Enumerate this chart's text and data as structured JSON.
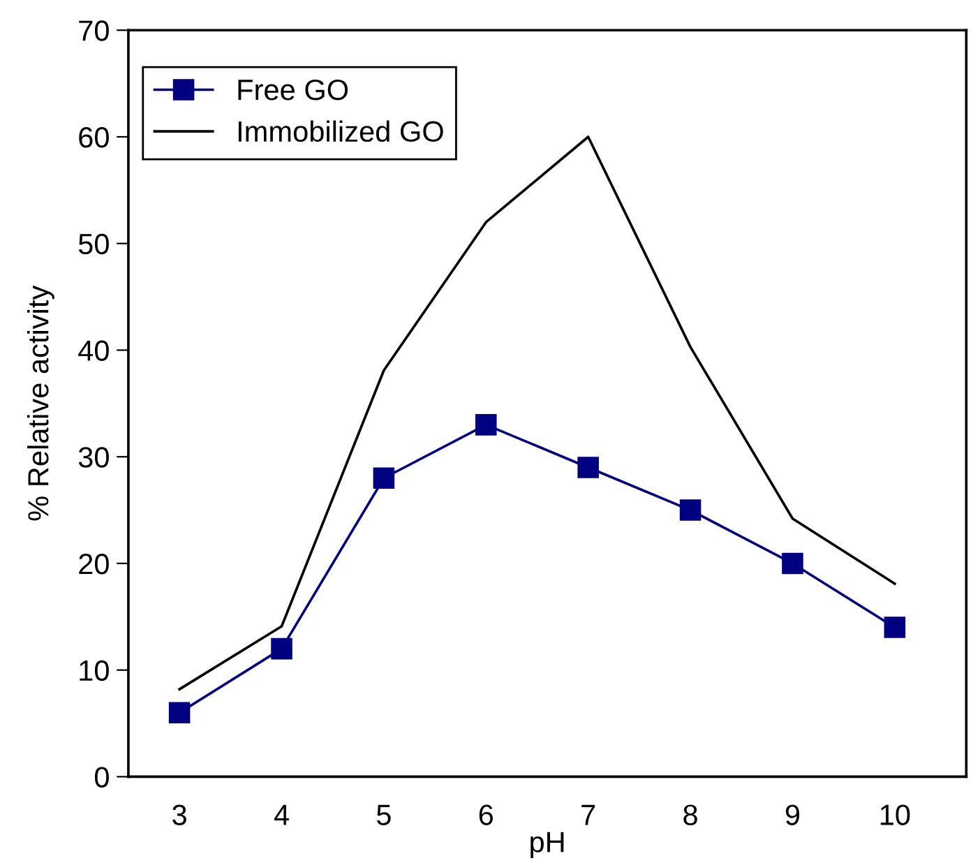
{
  "chart_data": {
    "type": "line",
    "xlabel": "pH",
    "ylabel": "% Relative activity",
    "categories": [
      "3",
      "4",
      "5",
      "6",
      "7",
      "8",
      "9",
      "10"
    ],
    "series": [
      {
        "name": "Free GO",
        "color": "#000080",
        "marker": "square",
        "values": [
          6,
          12,
          28,
          33,
          29,
          25,
          20,
          14
        ]
      },
      {
        "name": "Immobilized GO",
        "color": "#000000",
        "marker": "none",
        "values": [
          8.2,
          14.1,
          38.1,
          52,
          60,
          40.3,
          24.2,
          18.1
        ]
      }
    ],
    "ylim": [
      0,
      70
    ],
    "yticks": [
      0,
      10,
      20,
      30,
      40,
      50,
      60,
      70
    ],
    "grid": false,
    "legend": "top left",
    "line_style": "solid"
  }
}
